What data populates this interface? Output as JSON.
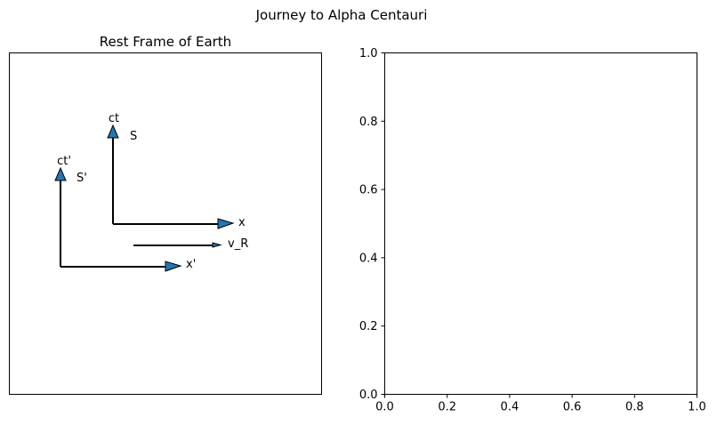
{
  "figure": {
    "title": "Journey to Alpha Centauri",
    "accent_color": "#1f77b4"
  },
  "left_panel": {
    "title": "Rest Frame of Earth",
    "frames": {
      "S": {
        "label": "S",
        "time_axis_label": "ct",
        "space_axis_label": "x"
      },
      "S_prime": {
        "label": "S'",
        "time_axis_label": "ct'",
        "space_axis_label": "x'"
      }
    },
    "velocity_label": "v_R"
  },
  "chart_data": [
    {
      "type": "diagram",
      "title": "Rest Frame of Earth",
      "axes_visible": false,
      "arrows": [
        {
          "name": "S time axis",
          "label": "ct",
          "color": "#1f77b4"
        },
        {
          "name": "S space axis",
          "label": "x",
          "color": "#1f77b4"
        },
        {
          "name": "S' time axis",
          "label": "ct'",
          "color": "#1f77b4"
        },
        {
          "name": "S' space axis",
          "label": "x'",
          "color": "#1f77b4"
        },
        {
          "name": "relative velocity",
          "label": "v_R",
          "color": "#1f77b4"
        }
      ],
      "frame_labels": [
        "S",
        "S'"
      ]
    },
    {
      "type": "scatter",
      "title": "",
      "xlabel": "",
      "ylabel": "",
      "xlim": [
        0,
        1
      ],
      "ylim": [
        0,
        1
      ],
      "x_ticks": [
        "0.0",
        "0.2",
        "0.4",
        "0.6",
        "0.8",
        "1.0"
      ],
      "y_ticks": [
        "0.0",
        "0.2",
        "0.4",
        "0.6",
        "0.8",
        "1.0"
      ],
      "series": []
    }
  ]
}
